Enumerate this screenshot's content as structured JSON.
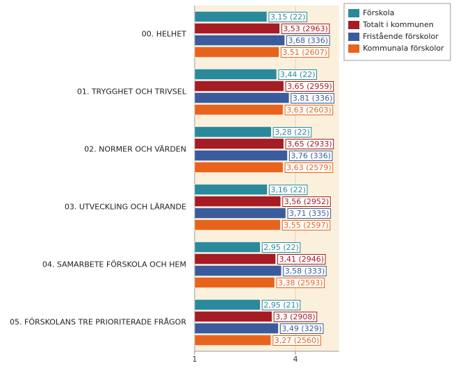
{
  "chart_data": {
    "type": "hbar",
    "categories": [
      "00. HELHET",
      "01. TRYGGHET OCH TRIVSEL",
      "02. NORMER OCH VÄRDEN",
      "03. UTVECKLING OCH LÄRANDE",
      "04. SAMARBETE FÖRSKOLA OCH HEM",
      "05. FÖRSKOLANS TRE PRIORITERADE FRÅGOR"
    ],
    "series": [
      {
        "name": "Förskola",
        "color": "#2a8a9c",
        "values": [
          3.15,
          3.44,
          3.28,
          3.16,
          2.95,
          2.95
        ],
        "value_labels": [
          "3,15 (22)",
          "3,44 (22)",
          "3,28 (22)",
          "3,16 (22)",
          "2,95 (22)",
          "2,95 (21)"
        ]
      },
      {
        "name": "Totalt i kommunen",
        "color": "#a51c24",
        "values": [
          3.53,
          3.65,
          3.65,
          3.56,
          3.41,
          3.3
        ],
        "value_labels": [
          "3,53 (2963)",
          "3,65 (2959)",
          "3,65 (2933)",
          "3,56 (2952)",
          "3,41 (2946)",
          "3,3 (2908)"
        ]
      },
      {
        "name": "Fristående förskolor",
        "color": "#3a5c9c",
        "values": [
          3.68,
          3.81,
          3.76,
          3.71,
          3.58,
          3.49
        ],
        "value_labels": [
          "3,68 (336)",
          "3,81 (336)",
          "3,76 (336)",
          "3,71 (335)",
          "3,58 (333)",
          "3,49 (329)"
        ]
      },
      {
        "name": "Kommunala förskolor",
        "color": "#e8641c",
        "values": [
          3.51,
          3.63,
          3.63,
          3.55,
          3.38,
          3.27
        ],
        "value_labels": [
          "3,51 (2607)",
          "3,63 (2603)",
          "3,63 (2579)",
          "3,55 (2597)",
          "3,38 (2593)",
          "3,27 (2560)"
        ]
      }
    ],
    "xlim": [
      1,
      5.3
    ],
    "xticks": [
      1,
      4
    ],
    "grid": true,
    "legend": "top-right"
  }
}
